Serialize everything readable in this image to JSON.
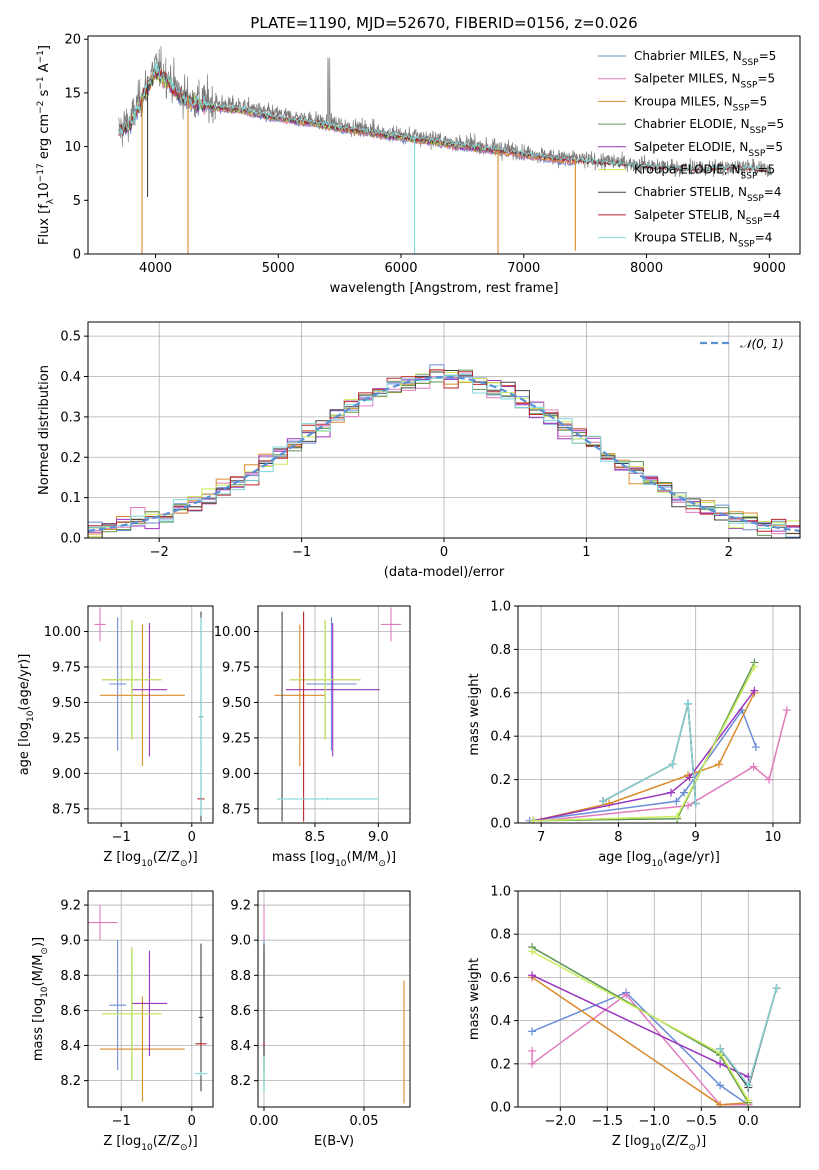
{
  "colors": {
    "Chabrier MILES": "#6b8cd6",
    "Salpeter MILES": "#e07cbe",
    "Kroupa MILES": "#d98a2b",
    "Chabrier ELODIE": "#5e9658",
    "Salpeter ELODIE": "#9a33bf",
    "Kroupa ELODIE": "#c8ec5a",
    "Chabrier STELIB": "#444444",
    "Salpeter STELIB": "#b8252a",
    "Kroupa STELIB": "#7fd7d7"
  },
  "chart_data": [
    {
      "id": "spectrum",
      "type": "line",
      "title": "PLATE=1190, MJD=52670, FIBERID=0156, z=0.026",
      "xlabel": "wavelength [Angstrom, rest frame]",
      "ylabel_parts": [
        "Flux [f",
        "λ",
        "10",
        "−17",
        " erg cm",
        "−2",
        " s",
        "−1",
        " A",
        "−1",
        "]"
      ],
      "xlim": [
        3450,
        9250
      ],
      "ylim": [
        0,
        20.3
      ],
      "xticks": [
        4000,
        5000,
        6000,
        7000,
        8000,
        9000
      ],
      "yticks": [
        0,
        5,
        10,
        15,
        20
      ],
      "grid": false,
      "legend_position": "top-right",
      "legend": [
        {
          "name": "Chabrier MILES, N",
          "sub": "SSP",
          "tail": "=5",
          "key": "Chabrier MILES"
        },
        {
          "name": "Salpeter MILES, N",
          "sub": "SSP",
          "tail": "=5",
          "key": "Salpeter MILES"
        },
        {
          "name": "Kroupa MILES, N",
          "sub": "SSP",
          "tail": "=5",
          "key": "Kroupa MILES"
        },
        {
          "name": "Chabrier ELODIE, N",
          "sub": "SSP",
          "tail": "=5",
          "key": "Chabrier ELODIE"
        },
        {
          "name": "Salpeter ELODIE, N",
          "sub": "SSP",
          "tail": "=5",
          "key": "Salpeter ELODIE"
        },
        {
          "name": "Kroupa ELODIE, N",
          "sub": "SSP",
          "tail": "=5",
          "key": "Kroupa ELODIE"
        },
        {
          "name": "Chabrier STELIB, N",
          "sub": "SSP",
          "tail": "=4",
          "key": "Chabrier STELIB"
        },
        {
          "name": "Salpeter STELIB, N",
          "sub": "SSP",
          "tail": "=4",
          "key": "Salpeter STELIB"
        },
        {
          "name": "Kroupa STELIB, N",
          "sub": "SSP",
          "tail": "=4",
          "key": "Kroupa STELIB"
        }
      ],
      "data_envelope": {
        "x": [
          3700,
          3800,
          3900,
          4000,
          4100,
          4200,
          4300,
          4500,
          4700,
          4900,
          5100,
          5300,
          5500,
          5700,
          5900,
          6100,
          6300,
          6500,
          6700,
          6900,
          7100,
          7300,
          7500,
          7700,
          7900,
          8100,
          8300,
          8500,
          8700,
          8900,
          9000
        ],
        "y": [
          11.5,
          12.5,
          15.0,
          17.5,
          16.5,
          15.0,
          14.5,
          14.0,
          13.8,
          13.2,
          12.8,
          12.5,
          12.0,
          11.7,
          11.3,
          11.0,
          10.7,
          10.3,
          10.0,
          9.7,
          9.3,
          9.0,
          8.8,
          8.6,
          8.4,
          8.2,
          8.0,
          8.0,
          8.2,
          8.0,
          7.9
        ]
      },
      "spikes": [
        {
          "x": 3890,
          "key": "Kroupa MILES",
          "ymin": 0
        },
        {
          "x": 3935,
          "key": "Chabrier STELIB",
          "ymin": 5.3
        },
        {
          "x": 4265,
          "key": "Kroupa MILES",
          "ymin": 0
        },
        {
          "x": 6110,
          "key": "Kroupa STELIB",
          "ymin": 0
        },
        {
          "x": 6790,
          "key": "Kroupa MILES",
          "ymin": 0
        },
        {
          "x": 7420,
          "key": "Kroupa MILES",
          "ymin": 0.3
        }
      ]
    },
    {
      "id": "residuals",
      "type": "histogram",
      "xlabel": "(data-model)/error",
      "ylabel": "Normed distribution",
      "xlim": [
        -2.5,
        2.5
      ],
      "ylim": [
        0,
        0.535
      ],
      "xticks": [
        -2,
        -1,
        0,
        1,
        2
      ],
      "yticks": [
        0.0,
        0.1,
        0.2,
        0.3,
        0.4,
        0.5
      ],
      "grid": true,
      "legend_position": "top-right",
      "legend_label": "𝒩(0, 1)",
      "bin_width": 0.1,
      "gaussian": {
        "mean": 0,
        "sigma": 1
      }
    },
    {
      "id": "age-vs-Z",
      "type": "errorbar",
      "xlabel_parts": [
        "Z [log",
        "10",
        "(Z/Z",
        "⊙",
        ")]"
      ],
      "ylabel_parts": [
        "age  [log",
        "10",
        "(age/yr)]"
      ],
      "xlim": [
        -1.47,
        0.3
      ],
      "ylim": [
        8.65,
        10.18
      ],
      "xticks": [
        -1,
        0
      ],
      "yticks": [
        8.75,
        9.0,
        9.25,
        9.5,
        9.75,
        10.0
      ],
      "grid": true,
      "points": [
        {
          "key": "Chabrier MILES",
          "x": -1.05,
          "xerr": 0.12,
          "y": 9.63,
          "yerr": 0.47
        },
        {
          "key": "Salpeter MILES",
          "x": -1.3,
          "xerr": 0.08,
          "y": 10.05,
          "yerr": 0.12
        },
        {
          "key": "Kroupa MILES",
          "x": -0.7,
          "xerr": 0.6,
          "y": 9.55,
          "yerr": 0.5
        },
        {
          "key": "Chabrier ELODIE",
          "x": -0.85,
          "xerr": 0.42,
          "y": 9.66,
          "yerr": 0.42
        },
        {
          "key": "Salpeter ELODIE",
          "x": -0.6,
          "xerr": 0.25,
          "y": 9.59,
          "yerr": 0.47
        },
        {
          "key": "Kroupa ELODIE",
          "x": -0.85,
          "xerr": 0.42,
          "y": 9.66,
          "yerr": 0.42
        },
        {
          "key": "Chabrier STELIB",
          "x": 0.13,
          "xerr": 0.03,
          "y": 9.4,
          "yerr": 0.74
        },
        {
          "key": "Salpeter STELIB",
          "x": 0.13,
          "xerr": 0.05,
          "y": 8.82,
          "yerr": 0.02
        },
        {
          "key": "Kroupa STELIB",
          "x": 0.13,
          "xerr": 0.03,
          "y": 9.4,
          "yerr": 0.7
        }
      ]
    },
    {
      "id": "age-vs-mass",
      "type": "errorbar",
      "xlabel_parts": [
        "mass [log",
        "10",
        "(M/M",
        "⊙",
        ")]"
      ],
      "ylabel_parts": [],
      "xlim": [
        8.05,
        9.25
      ],
      "ylim": [
        8.65,
        10.18
      ],
      "xticks": [
        8.5,
        9.0
      ],
      "yticks": [
        8.75,
        9.0,
        9.25,
        9.5,
        9.75,
        10.0
      ],
      "grid": true,
      "points": [
        {
          "key": "Chabrier MILES",
          "x": 8.63,
          "xerr": 0.2,
          "y": 9.63,
          "yerr": 0.47
        },
        {
          "key": "Salpeter MILES",
          "x": 9.1,
          "xerr": 0.08,
          "y": 10.05,
          "yerr": 0.12
        },
        {
          "key": "Kroupa MILES",
          "x": 8.38,
          "xerr": 0.2,
          "y": 9.55,
          "yerr": 0.5
        },
        {
          "key": "Chabrier ELODIE",
          "x": 8.58,
          "xerr": 0.28,
          "y": 9.66,
          "yerr": 0.42
        },
        {
          "key": "Salpeter ELODIE",
          "x": 8.64,
          "xerr": 0.37,
          "y": 9.59,
          "yerr": 0.47
        },
        {
          "key": "Kroupa ELODIE",
          "x": 8.58,
          "xerr": 0.28,
          "y": 9.66,
          "yerr": 0.42
        },
        {
          "key": "Chabrier STELIB",
          "x": 8.24,
          "xerr": 0.0,
          "y": 9.4,
          "yerr": 0.74
        },
        {
          "key": "Salpeter STELIB",
          "x": 8.41,
          "xerr": 0.0,
          "y": 9.4,
          "yerr": 0.74
        },
        {
          "key": "Kroupa STELIB",
          "x": 8.6,
          "xerr": 0.4,
          "y": 8.82,
          "yerr": 0.01
        }
      ]
    },
    {
      "id": "weight-vs-age",
      "type": "line",
      "xlabel_parts": [
        "age  [log",
        "10",
        "(age/yr)]"
      ],
      "ylabel": "mass weight",
      "xlim": [
        6.7,
        10.35
      ],
      "ylim": [
        0,
        1.0
      ],
      "xticks": [
        7,
        8,
        9,
        10
      ],
      "yticks": [
        0.0,
        0.2,
        0.4,
        0.6,
        0.8,
        1.0
      ],
      "grid": true,
      "series": [
        {
          "key": "Chabrier MILES",
          "x": [
            6.85,
            8.75,
            8.85,
            9.6,
            9.78
          ],
          "y": [
            0.01,
            0.1,
            0.14,
            0.52,
            0.35
          ]
        },
        {
          "key": "Salpeter MILES",
          "x": [
            7.0,
            8.9,
            9.75,
            9.95,
            10.18
          ],
          "y": [
            0.01,
            0.08,
            0.26,
            0.2,
            0.52
          ]
        },
        {
          "key": "Kroupa MILES",
          "x": [
            6.9,
            7.88,
            8.9,
            9.3,
            9.76
          ],
          "y": [
            0.01,
            0.09,
            0.22,
            0.27,
            0.6
          ]
        },
        {
          "key": "Chabrier ELODIE",
          "x": [
            6.9,
            8.76,
            9.76
          ],
          "y": [
            0.01,
            0.02,
            0.74
          ]
        },
        {
          "key": "Salpeter ELODIE",
          "x": [
            6.9,
            8.68,
            8.92,
            9.76
          ],
          "y": [
            0.01,
            0.14,
            0.21,
            0.61
          ]
        },
        {
          "key": "Kroupa ELODIE",
          "x": [
            6.9,
            8.76,
            9.76
          ],
          "y": [
            0.01,
            0.03,
            0.72
          ]
        },
        {
          "key": "Chabrier STELIB",
          "x": [
            7.8,
            8.7,
            8.9,
            9.0
          ],
          "y": [
            0.1,
            0.27,
            0.55,
            0.09
          ]
        },
        {
          "key": "Salpeter STELIB",
          "x": [
            7.8,
            8.7,
            8.9,
            9.0
          ],
          "y": [
            0.1,
            0.27,
            0.55,
            0.09
          ]
        },
        {
          "key": "Kroupa STELIB",
          "x": [
            7.8,
            8.7,
            8.9,
            9.0
          ],
          "y": [
            0.1,
            0.27,
            0.55,
            0.09
          ]
        }
      ]
    },
    {
      "id": "mass-vs-Z",
      "type": "errorbar",
      "xlabel_parts": [
        "Z [log",
        "10",
        "(Z/Z",
        "⊙",
        ")]"
      ],
      "ylabel_parts": [
        "mass [log",
        "10",
        "(M/M",
        "⊙",
        ")]"
      ],
      "xlim": [
        -1.47,
        0.3
      ],
      "ylim": [
        8.05,
        9.28
      ],
      "xticks": [
        -1,
        0
      ],
      "yticks": [
        8.2,
        8.4,
        8.6,
        8.8,
        9.0,
        9.2
      ],
      "grid": true,
      "points": [
        {
          "key": "Chabrier MILES",
          "x": -1.05,
          "xerr": 0.12,
          "y": 8.63,
          "yerr": 0.37
        },
        {
          "key": "Salpeter MILES",
          "x": -1.3,
          "xerr": 0.25,
          "y": 9.1,
          "yerr": 0.1
        },
        {
          "key": "Kroupa MILES",
          "x": -0.7,
          "xerr": 0.6,
          "y": 8.38,
          "yerr": 0.3
        },
        {
          "key": "Chabrier ELODIE",
          "x": -0.85,
          "xerr": 0.42,
          "y": 8.58,
          "yerr": 0.38
        },
        {
          "key": "Salpeter ELODIE",
          "x": -0.6,
          "xerr": 0.25,
          "y": 8.64,
          "yerr": 0.3
        },
        {
          "key": "Kroupa ELODIE",
          "x": -0.85,
          "xerr": 0.42,
          "y": 8.58,
          "yerr": 0.38
        },
        {
          "key": "Chabrier STELIB",
          "x": 0.13,
          "xerr": 0.03,
          "y": 8.56,
          "yerr": 0.42
        },
        {
          "key": "Salpeter STELIB",
          "x": 0.13,
          "xerr": 0.08,
          "y": 8.41,
          "yerr": 0.01
        },
        {
          "key": "Kroupa STELIB",
          "x": 0.13,
          "xerr": 0.09,
          "y": 8.24,
          "yerr": 0.01
        }
      ]
    },
    {
      "id": "mass-vs-ebv",
      "type": "errorbar",
      "xlabel": "E(B-V)",
      "ylabel_parts": [],
      "xlim": [
        -0.003,
        0.073
      ],
      "ylim": [
        8.05,
        9.28
      ],
      "xticks": [
        0.0,
        0.05
      ],
      "yticks": [
        8.2,
        8.4,
        8.6,
        8.8,
        9.0,
        9.2
      ],
      "grid": true,
      "points": [
        {
          "key": "Chabrier MILES",
          "x": 0.0,
          "xerr": 0,
          "y": 8.63,
          "yerr": 0.37
        },
        {
          "key": "Salpeter MILES",
          "x": 0.0,
          "xerr": 0,
          "y": 9.1,
          "yerr": 0.1
        },
        {
          "key": "Kroupa MILES",
          "x": 0.07,
          "xerr": 0,
          "y": 8.42,
          "yerr": 0.35
        },
        {
          "key": "Chabrier ELODIE",
          "x": 0.0,
          "xerr": 0,
          "y": 8.58,
          "yerr": 0.38
        },
        {
          "key": "Salpeter ELODIE",
          "x": 0.0,
          "xerr": 0,
          "y": 8.64,
          "yerr": 0.3
        },
        {
          "key": "Kroupa ELODIE",
          "x": 0.0,
          "xerr": 0,
          "y": 8.58,
          "yerr": 0.38
        },
        {
          "key": "Chabrier STELIB",
          "x": 0.0,
          "xerr": 0,
          "y": 8.56,
          "yerr": 0.42
        },
        {
          "key": "Salpeter STELIB",
          "x": 0.0,
          "xerr": 0,
          "y": 8.41,
          "yerr": 0.01
        },
        {
          "key": "Kroupa STELIB",
          "x": 0.0,
          "xerr": 0,
          "y": 8.24,
          "yerr": 0.1
        }
      ]
    },
    {
      "id": "weight-vs-Z",
      "type": "line",
      "xlabel_parts": [
        "Z [log",
        "10",
        "(Z/Z",
        "⊙",
        ")]"
      ],
      "ylabel": "mass weight",
      "xlim": [
        -2.45,
        0.55
      ],
      "ylim": [
        0,
        1.0
      ],
      "xticks": [
        -2.0,
        -1.5,
        -1.0,
        -0.5,
        0.0
      ],
      "yticks": [
        0.0,
        0.2,
        0.4,
        0.6,
        0.8,
        1.0
      ],
      "grid": true,
      "series": [
        {
          "key": "Chabrier MILES",
          "x": [
            -2.3,
            -1.3,
            -0.3,
            0.0
          ],
          "y": [
            0.35,
            0.53,
            0.1,
            0.01
          ]
        },
        {
          "key": "Salpeter MILES",
          "x": [
            -2.3,
            -2.3,
            -1.3,
            -0.3,
            0.0
          ],
          "y": [
            0.26,
            0.2,
            0.52,
            0.01,
            0.01
          ]
        },
        {
          "key": "Kroupa MILES",
          "x": [
            -2.3,
            -0.3,
            0.0
          ],
          "y": [
            0.6,
            0.01,
            0.02
          ]
        },
        {
          "key": "Chabrier ELODIE",
          "x": [
            -2.3,
            -0.3,
            0.0
          ],
          "y": [
            0.74,
            0.24,
            0.02
          ]
        },
        {
          "key": "Salpeter ELODIE",
          "x": [
            -2.3,
            -0.3,
            0.0
          ],
          "y": [
            0.61,
            0.2,
            0.14
          ]
        },
        {
          "key": "Kroupa ELODIE",
          "x": [
            -2.3,
            -0.3,
            0.0
          ],
          "y": [
            0.72,
            0.25,
            0.03
          ]
        },
        {
          "key": "Chabrier STELIB",
          "x": [
            -0.3,
            0.0,
            0.3
          ],
          "y": [
            0.27,
            0.09,
            0.55
          ]
        },
        {
          "key": "Salpeter STELIB",
          "x": [
            -0.3,
            0.0,
            0.3
          ],
          "y": [
            0.27,
            0.1,
            0.55
          ]
        },
        {
          "key": "Kroupa STELIB",
          "x": [
            -0.3,
            0.0,
            0.3
          ],
          "y": [
            0.27,
            0.1,
            0.55
          ]
        }
      ]
    }
  ]
}
